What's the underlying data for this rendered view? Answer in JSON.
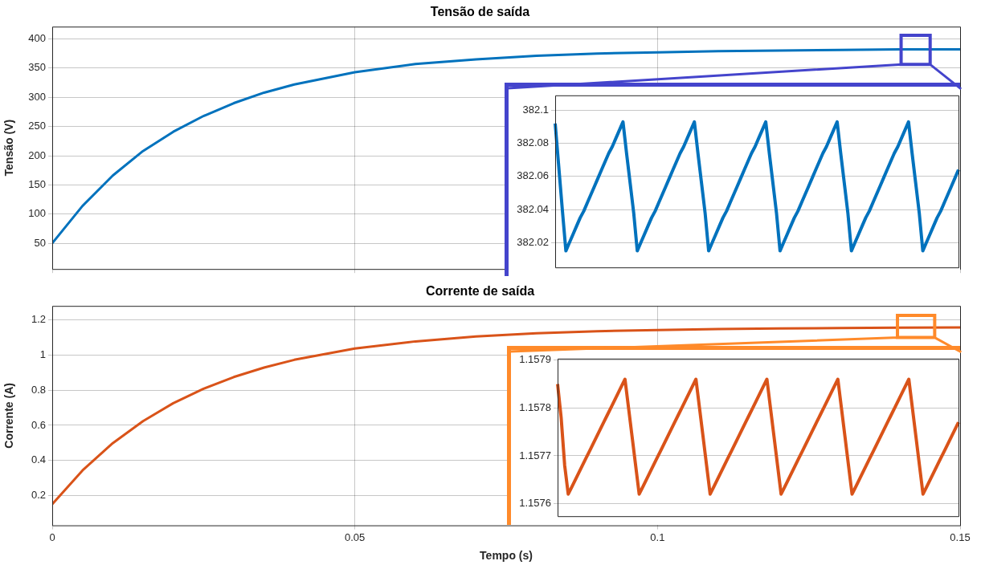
{
  "chart_data": [
    {
      "type": "line",
      "title": "Tensão de saída",
      "ylabel": "Tensão (V)",
      "xlim": [
        0,
        0.15
      ],
      "xticks": [
        0,
        0.05,
        0.1,
        0.15
      ],
      "ylim": [
        6,
        421
      ],
      "yticks": [
        50,
        100,
        150,
        200,
        250,
        300,
        350,
        400
      ],
      "grid": true,
      "tick_labels": "y",
      "x": [
        0,
        0.005,
        0.01,
        0.015,
        0.02,
        0.025,
        0.03,
        0.035,
        0.04,
        0.05,
        0.06,
        0.07,
        0.08,
        0.09,
        0.1,
        0.11,
        0.12,
        0.13,
        0.14,
        0.15
      ],
      "series": [
        {
          "color": "#0072bd",
          "values": [
            50,
            114,
            166,
            208,
            241,
            268,
            290,
            308,
            322,
            343,
            357,
            365,
            371,
            375,
            377,
            379,
            380,
            381,
            382,
            382
          ]
        }
      ]
    },
    {
      "type": "line",
      "title": "Corrente de saída",
      "xlabel": "Tempo (s)",
      "ylabel": "Corrente (A)",
      "xlim": [
        0,
        0.15
      ],
      "xticks": [
        0,
        0.05,
        0.1,
        0.15
      ],
      "ylim": [
        0.03,
        1.28
      ],
      "yticks": [
        0.2,
        0.4,
        0.6,
        0.8,
        1,
        1.2
      ],
      "grid": true,
      "x": [
        0,
        0.005,
        0.01,
        0.015,
        0.02,
        0.025,
        0.03,
        0.035,
        0.04,
        0.05,
        0.06,
        0.07,
        0.08,
        0.09,
        0.1,
        0.11,
        0.12,
        0.13,
        0.14,
        0.15
      ],
      "series": [
        {
          "color": "#d95319",
          "values": [
            0.15,
            0.343,
            0.498,
            0.624,
            0.726,
            0.808,
            0.875,
            0.929,
            0.973,
            1.037,
            1.078,
            1.106,
            1.124,
            1.136,
            1.143,
            1.148,
            1.152,
            1.154,
            1.156,
            1.157
          ]
        }
      ]
    },
    {
      "type": "line",
      "ylim": [
        382.005,
        382.109
      ],
      "yticks": [
        382.02,
        382.04,
        382.06,
        382.08,
        382.1
      ],
      "grid": "y",
      "tick_labels": "y",
      "categories": [
        null,
        null,
        null,
        null,
        null,
        null,
        null,
        null,
        null,
        null,
        null,
        null,
        null,
        null,
        null,
        null,
        null,
        null,
        null,
        null,
        null,
        null,
        null,
        null,
        null,
        null,
        null,
        null,
        null,
        null,
        null,
        null,
        null,
        null,
        null,
        null,
        null,
        null,
        null,
        null,
        null,
        null,
        null,
        null,
        null,
        null,
        null,
        null,
        null,
        null,
        null,
        null,
        null,
        null,
        null,
        null,
        null,
        null,
        null,
        null,
        null,
        null,
        null,
        null,
        null,
        null,
        null,
        null,
        null,
        null,
        null,
        null,
        null,
        null,
        null,
        null,
        null,
        null,
        null,
        null,
        null,
        null,
        null,
        null,
        null,
        null,
        null,
        null,
        null,
        null,
        null,
        null,
        null,
        null,
        null,
        null,
        null,
        null,
        null,
        null,
        null,
        null,
        null,
        null,
        null,
        null,
        null,
        null,
        null,
        null,
        null,
        null,
        null,
        null
      ],
      "series": [
        {
          "color": "#0072bd",
          "values": [
            382.092,
            382.066,
            382.04,
            382.015,
            382.02,
            382.025,
            382.03,
            382.035,
            382.039,
            382.044,
            382.049,
            382.054,
            382.059,
            382.064,
            382.069,
            382.074,
            382.078,
            382.083,
            382.088,
            382.093,
            382.074,
            382.056,
            382.038,
            382.015,
            382.02,
            382.025,
            382.03,
            382.035,
            382.039,
            382.044,
            382.049,
            382.054,
            382.059,
            382.064,
            382.069,
            382.074,
            382.078,
            382.083,
            382.088,
            382.093,
            382.074,
            382.056,
            382.038,
            382.015,
            382.02,
            382.025,
            382.03,
            382.035,
            382.039,
            382.044,
            382.049,
            382.054,
            382.059,
            382.064,
            382.069,
            382.074,
            382.078,
            382.083,
            382.088,
            382.093,
            382.074,
            382.056,
            382.038,
            382.015,
            382.02,
            382.025,
            382.03,
            382.035,
            382.039,
            382.044,
            382.049,
            382.054,
            382.059,
            382.064,
            382.069,
            382.074,
            382.078,
            382.083,
            382.088,
            382.093,
            382.074,
            382.056,
            382.038,
            382.015,
            382.02,
            382.025,
            382.03,
            382.035,
            382.039,
            382.044,
            382.049,
            382.054,
            382.059,
            382.064,
            382.069,
            382.074,
            382.078,
            382.083,
            382.088,
            382.093,
            382.074,
            382.056,
            382.038,
            382.015,
            382.02,
            382.025,
            382.03,
            382.035,
            382.039,
            382.044,
            382.049,
            382.054,
            382.059,
            382.064
          ]
        }
      ]
    },
    {
      "type": "line",
      "ylim": [
        1.157574,
        1.157903
      ],
      "yticks": [
        1.1576,
        1.1577,
        1.1578,
        1.1579
      ],
      "grid": "y",
      "tick_labels": "y",
      "categories": [
        null,
        null,
        null,
        null,
        null,
        null,
        null,
        null,
        null,
        null,
        null,
        null,
        null,
        null,
        null,
        null,
        null,
        null,
        null,
        null,
        null,
        null,
        null,
        null,
        null,
        null,
        null,
        null,
        null,
        null,
        null,
        null,
        null,
        null,
        null,
        null,
        null,
        null,
        null,
        null,
        null,
        null,
        null,
        null,
        null,
        null,
        null,
        null,
        null,
        null,
        null,
        null,
        null,
        null,
        null,
        null,
        null,
        null,
        null,
        null,
        null,
        null,
        null,
        null,
        null,
        null,
        null,
        null,
        null,
        null,
        null,
        null,
        null,
        null,
        null,
        null,
        null,
        null,
        null,
        null,
        null,
        null,
        null,
        null,
        null,
        null,
        null,
        null,
        null,
        null,
        null,
        null,
        null,
        null,
        null,
        null,
        null,
        null,
        null,
        null,
        null,
        null,
        null,
        null,
        null,
        null,
        null,
        null,
        null,
        null,
        null,
        null,
        null,
        null
      ],
      "series": [
        {
          "color": "#d95319",
          "values": [
            1.15785,
            1.15778,
            1.15768,
            1.15762,
            1.157635,
            1.15765,
            1.157665,
            1.15768,
            1.157695,
            1.15771,
            1.157725,
            1.15774,
            1.157755,
            1.15777,
            1.157785,
            1.1578,
            1.157815,
            1.15783,
            1.157845,
            1.15786,
            1.1578,
            1.15774,
            1.15768,
            1.15762,
            1.157635,
            1.15765,
            1.157665,
            1.15768,
            1.157695,
            1.15771,
            1.157725,
            1.15774,
            1.157755,
            1.15777,
            1.157785,
            1.1578,
            1.157815,
            1.15783,
            1.157845,
            1.15786,
            1.1578,
            1.15774,
            1.15768,
            1.15762,
            1.157635,
            1.15765,
            1.157665,
            1.15768,
            1.157695,
            1.15771,
            1.157725,
            1.15774,
            1.157755,
            1.15777,
            1.157785,
            1.1578,
            1.157815,
            1.15783,
            1.157845,
            1.15786,
            1.1578,
            1.15774,
            1.15768,
            1.15762,
            1.157635,
            1.15765,
            1.157665,
            1.15768,
            1.157695,
            1.15771,
            1.157725,
            1.15774,
            1.157755,
            1.15777,
            1.157785,
            1.1578,
            1.157815,
            1.15783,
            1.157845,
            1.15786,
            1.1578,
            1.15774,
            1.15768,
            1.15762,
            1.157635,
            1.15765,
            1.157665,
            1.15768,
            1.157695,
            1.15771,
            1.157725,
            1.15774,
            1.157755,
            1.15777,
            1.157785,
            1.1578,
            1.157815,
            1.15783,
            1.157845,
            1.15786,
            1.1578,
            1.15774,
            1.15768,
            1.15762,
            1.157635,
            1.15765,
            1.157665,
            1.15768,
            1.157695,
            1.15771,
            1.157725,
            1.15774,
            1.157755,
            1.15777
          ]
        }
      ]
    }
  ]
}
